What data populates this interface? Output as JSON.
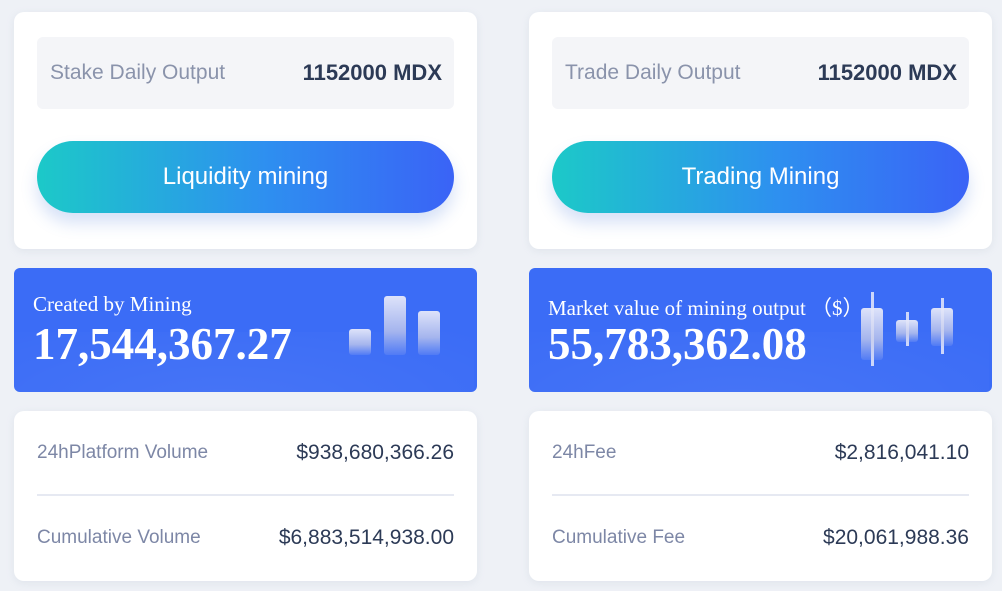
{
  "left": {
    "output_label": "Stake Daily Output",
    "output_value": "1152000 MDX",
    "button_label": "Liquidity mining",
    "summary_title": "Created by Mining",
    "summary_value": "17,544,367.27",
    "stats": [
      {
        "label": "24hPlatform Volume",
        "value": "$938,680,366.26"
      },
      {
        "label": "Cumulative Volume",
        "value": "$6,883,514,938.00"
      }
    ]
  },
  "right": {
    "output_label": "Trade Daily Output",
    "output_value": "1152000 MDX",
    "button_label": "Trading Mining",
    "summary_title": "Market value of mining output （$）",
    "summary_value": "55,783,362.08",
    "stats": [
      {
        "label": "24hFee",
        "value": "$2,816,041.10"
      },
      {
        "label": "Cumulative Fee",
        "value": "$20,061,988.36"
      }
    ]
  },
  "icons": {
    "left_summary_icon": "bar-chart-icon",
    "right_summary_icon": "candlestick-icon"
  },
  "colors": {
    "summary_bg": "#3b6cf6",
    "button_gradient_start": "#1cc9c8",
    "button_gradient_end": "#3a63f6"
  }
}
